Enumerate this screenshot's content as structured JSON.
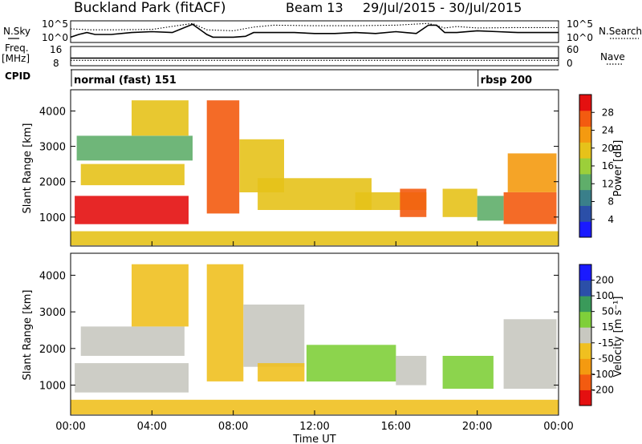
{
  "header": {
    "station": "Buckland Park (fitACF)",
    "beam": "Beam 13",
    "date_range": "29/Jul/2015 - 30/Jul/2015"
  },
  "chart_data": [
    {
      "type": "line",
      "panel": "noise",
      "left_label": "N.Sky",
      "right_label": "N.Search",
      "left_ticks": [
        "10^5",
        "10^0"
      ],
      "right_ticks": [
        "10^5",
        "10^0"
      ],
      "series": [
        {
          "name": "N.Sky",
          "style": "solid",
          "x": [
            0,
            0.4,
            0.8,
            1.2,
            2,
            3,
            4,
            5,
            6,
            6.7,
            7,
            8,
            8.6,
            9,
            10,
            11,
            12,
            13,
            14,
            15,
            16,
            17,
            17.6,
            18,
            18.4,
            19,
            20,
            21,
            22,
            23,
            24
          ],
          "y": [
            0.2,
            0.35,
            0.45,
            0.35,
            0.35,
            0.45,
            0.5,
            0.45,
            0.9,
            0.35,
            0.2,
            0.2,
            0.25,
            0.45,
            0.45,
            0.45,
            0.4,
            0.4,
            0.45,
            0.4,
            0.5,
            0.4,
            0.85,
            0.85,
            0.45,
            0.45,
            0.55,
            0.5,
            0.45,
            0.45,
            0.45
          ]
        },
        {
          "name": "N.Search",
          "style": "dotted",
          "x": [
            0,
            1,
            2,
            4,
            6,
            6.7,
            8,
            9,
            10,
            12,
            14,
            16,
            17.6,
            18.4,
            19,
            20,
            22,
            24
          ],
          "y": [
            0.65,
            0.6,
            0.6,
            0.62,
            0.95,
            0.6,
            0.55,
            0.75,
            0.85,
            0.82,
            0.82,
            0.85,
            0.95,
            0.7,
            0.78,
            0.7,
            0.72,
            0.72
          ]
        }
      ]
    },
    {
      "type": "line",
      "panel": "frequency",
      "left_label": "Freq.",
      "left_units": "[MHz]",
      "left_ticks": [
        "16",
        "8"
      ],
      "right_label": "Nave",
      "right_ticks": [
        "60",
        "0"
      ],
      "series": [
        {
          "name": "Freq.",
          "style": "solid",
          "x": [
            0,
            24
          ],
          "y": [
            11.0,
            11.0
          ]
        },
        {
          "name": "Nave",
          "style": "dotted",
          "x": [
            0,
            24
          ],
          "y": [
            14,
            14
          ]
        }
      ]
    },
    {
      "type": "table",
      "panel": "cpid",
      "left_label": "CPID",
      "segments": [
        {
          "label": "normal (fast) 151",
          "start": 0,
          "end": 20.0
        },
        {
          "label": "rbsp 200",
          "start": 20.0,
          "end": 24
        }
      ]
    },
    {
      "type": "heatmap",
      "panel": "power",
      "ylabel": "Slant Range [km]",
      "ylim": [
        180,
        4600
      ],
      "yticks": [
        1000,
        2000,
        3000,
        4000
      ],
      "colorbar": {
        "label": "Power [dB]",
        "ticks": [
          "4",
          "8",
          "12",
          "16",
          "20",
          "24",
          "28"
        ],
        "range": [
          0,
          32
        ]
      },
      "regions": [
        {
          "t0": 0.2,
          "t1": 5.8,
          "r0": 800,
          "r1": 1600,
          "value": 30
        },
        {
          "t0": 0.5,
          "t1": 5.6,
          "r0": 1900,
          "r1": 2500,
          "value": 20
        },
        {
          "t0": 0.3,
          "t1": 6.0,
          "r0": 2600,
          "r1": 3300,
          "value": 12
        },
        {
          "t0": 3.0,
          "t1": 5.8,
          "r0": 3300,
          "r1": 4300,
          "value": 18
        },
        {
          "t0": 6.7,
          "t1": 8.3,
          "r0": 1100,
          "r1": 4300,
          "value": 26
        },
        {
          "t0": 8.3,
          "t1": 10.5,
          "r0": 1700,
          "r1": 3200,
          "value": 18
        },
        {
          "t0": 9.2,
          "t1": 14.8,
          "r0": 1200,
          "r1": 2100,
          "value": 20
        },
        {
          "t0": 14.0,
          "t1": 17.5,
          "r0": 1200,
          "r1": 1700,
          "value": 20
        },
        {
          "t0": 16.2,
          "t1": 17.5,
          "r0": 1000,
          "r1": 1800,
          "value": 28
        },
        {
          "t0": 18.3,
          "t1": 20.0,
          "r0": 1000,
          "r1": 1800,
          "value": 18
        },
        {
          "t0": 20.0,
          "t1": 21.3,
          "r0": 900,
          "r1": 1600,
          "value": 12
        },
        {
          "t0": 21.3,
          "t1": 23.9,
          "r0": 800,
          "r1": 1700,
          "value": 28
        },
        {
          "t0": 21.5,
          "t1": 23.9,
          "r0": 1700,
          "r1": 2800,
          "value": 22
        },
        {
          "t0": 0.0,
          "t1": 24.0,
          "r0": 200,
          "r1": 600,
          "value": 20
        }
      ]
    },
    {
      "type": "heatmap",
      "panel": "velocity",
      "ylabel": "Slant Range [km]",
      "xlabel": "Time UT",
      "ylim": [
        180,
        4600
      ],
      "yticks": [
        1000,
        2000,
        3000,
        4000
      ],
      "xticks": [
        "00:00",
        "04:00",
        "08:00",
        "12:00",
        "16:00",
        "20:00",
        "00:00"
      ],
      "colorbar": {
        "label": "Velocity [m s⁻¹]",
        "ticks": [
          "-200",
          "-100",
          "-50",
          "-15",
          "15",
          "50",
          "100",
          "200"
        ]
      },
      "regions": [
        {
          "t0": 0.2,
          "t1": 5.8,
          "r0": 800,
          "r1": 1600,
          "value": 0
        },
        {
          "t0": 0.5,
          "t1": 5.6,
          "r0": 1800,
          "r1": 2600,
          "value": 0
        },
        {
          "t0": 3.0,
          "t1": 5.8,
          "r0": 2600,
          "r1": 4300,
          "value": -40
        },
        {
          "t0": 6.7,
          "t1": 8.5,
          "r0": 1100,
          "r1": 4300,
          "value": -40
        },
        {
          "t0": 8.5,
          "t1": 11.5,
          "r0": 1500,
          "r1": 3200,
          "value": 0
        },
        {
          "t0": 9.2,
          "t1": 11.5,
          "r0": 1100,
          "r1": 1600,
          "value": -60
        },
        {
          "t0": 11.6,
          "t1": 16.0,
          "r0": 1100,
          "r1": 2100,
          "value": 40
        },
        {
          "t0": 16.0,
          "t1": 17.5,
          "r0": 1000,
          "r1": 1800,
          "value": 0
        },
        {
          "t0": 18.3,
          "t1": 20.8,
          "r0": 900,
          "r1": 1800,
          "value": 40
        },
        {
          "t0": 21.3,
          "t1": 23.9,
          "r0": 900,
          "r1": 2800,
          "value": 0
        },
        {
          "t0": 0.0,
          "t1": 24.0,
          "r0": 200,
          "r1": 600,
          "value": -40
        }
      ]
    }
  ],
  "colors": {
    "power_scale": [
      "#1a1aff",
      "#2b4fa8",
      "#3a7f8a",
      "#5fae6a",
      "#9ccf3a",
      "#e6c21a",
      "#f49a10",
      "#f35b10",
      "#e41010"
    ],
    "velocity_scale": [
      "#e41010",
      "#f35b10",
      "#f49a10",
      "#f0c020",
      "#c8c8c0",
      "#7fcf3a",
      "#3a9a5a",
      "#2b4fa8",
      "#1a1aff"
    ]
  }
}
